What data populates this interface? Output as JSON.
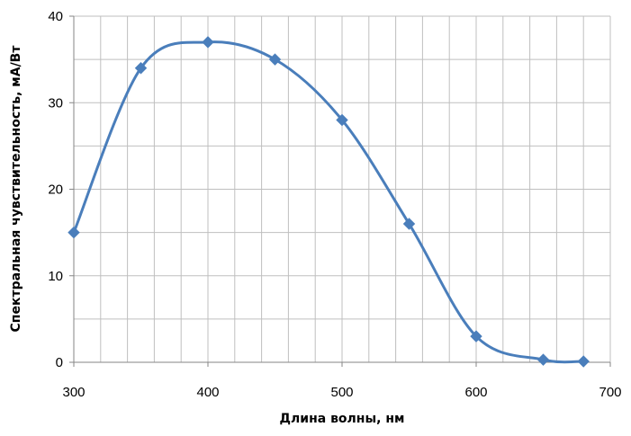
{
  "chart_data": {
    "type": "line",
    "title": "",
    "xlabel": "Длина волны, нм",
    "ylabel": "Спектральная чувствительность, мА/Вт",
    "xlim": [
      300,
      700
    ],
    "ylim": [
      0,
      40
    ],
    "x_ticks": [
      300,
      400,
      500,
      600,
      700
    ],
    "y_ticks": [
      0,
      10,
      20,
      30,
      40
    ],
    "grid": true,
    "smooth": true,
    "legend": "none",
    "colors": {
      "line": "#4a7ebb",
      "grid": "#bfbfbf",
      "axis": "#868686"
    },
    "marker": "diamond",
    "series": [
      {
        "x": [
          300,
          350,
          400,
          450,
          500,
          550,
          600,
          650,
          680
        ],
        "y": [
          15,
          34,
          37,
          35,
          28,
          16,
          3,
          0.3,
          0.1
        ]
      }
    ]
  }
}
